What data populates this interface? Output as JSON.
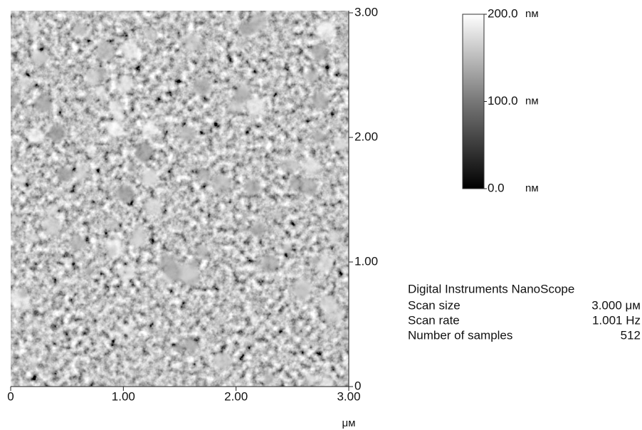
{
  "x_axis": {
    "ticks": [
      {
        "value": 0,
        "label": "0"
      },
      {
        "value": 1,
        "label": "1.00"
      },
      {
        "value": 2,
        "label": "2.00"
      },
      {
        "value": 3,
        "label": "3.00"
      }
    ],
    "unit": "μм"
  },
  "y_axis": {
    "ticks": [
      {
        "value": 0,
        "label": "0"
      },
      {
        "value": 1,
        "label": "1.00"
      },
      {
        "value": 2,
        "label": "2.00"
      },
      {
        "value": 3,
        "label": "3.00"
      }
    ]
  },
  "colorbar": {
    "ticks": [
      {
        "value": 200,
        "label": "200.0"
      },
      {
        "value": 100,
        "label": "100.0"
      },
      {
        "value": 0,
        "label": "0.0"
      }
    ],
    "unit": "nм"
  },
  "info": {
    "title": "Digital Instruments NanoScope",
    "rows": [
      [
        "Scan size",
        "3.000 μм"
      ],
      [
        "Scan rate",
        "1.001 Hz"
      ],
      [
        "Number of samples",
        "512"
      ]
    ]
  }
}
